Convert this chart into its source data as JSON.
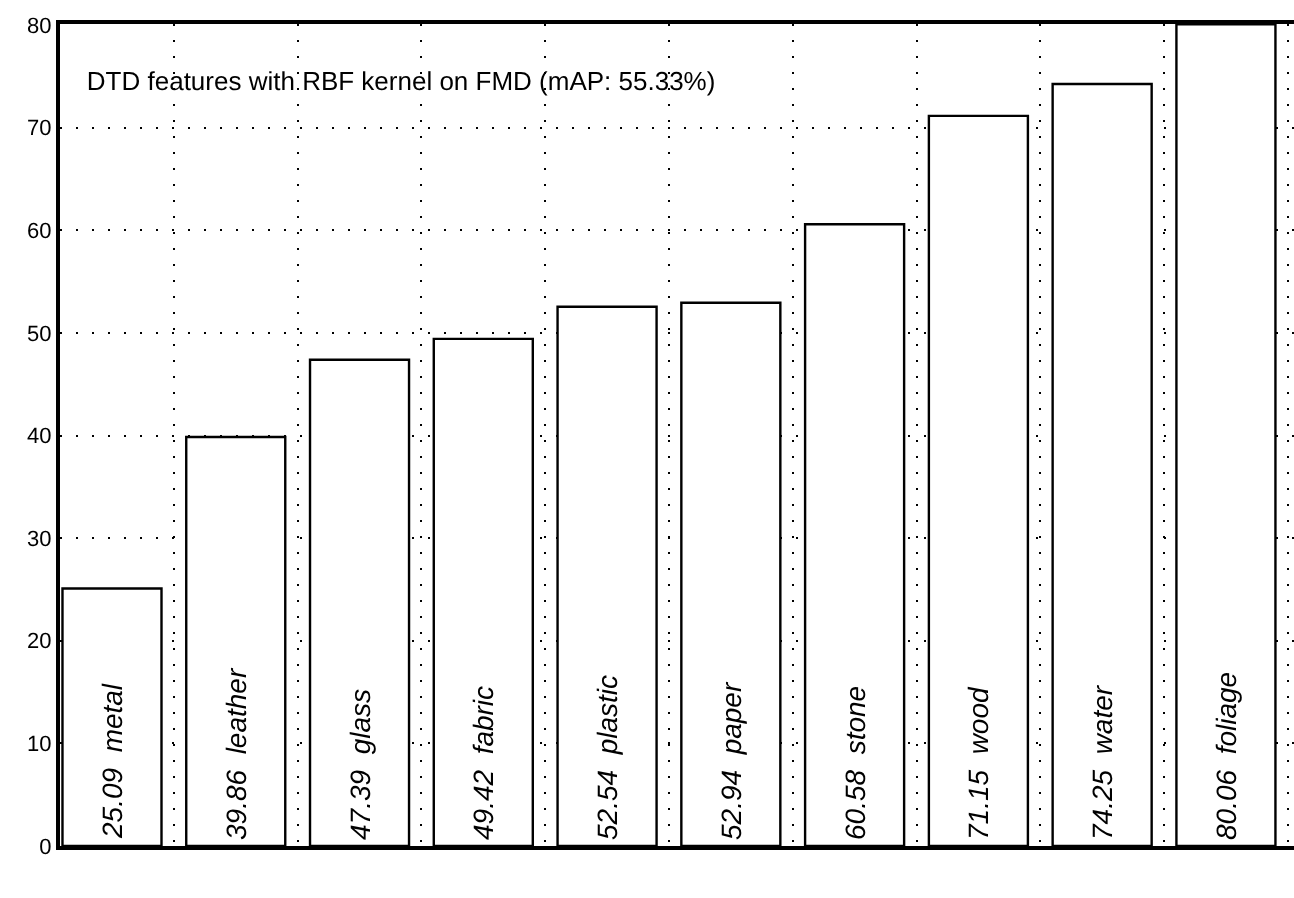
{
  "chart_data": {
    "type": "bar",
    "title": "DTD features with RBF kernel on FMD (mAP: 55.33%)",
    "categories": [
      "25.09  metal",
      "39.86  leather",
      "47.39  glass",
      "49.42  fabric",
      "52.54  plastic",
      "52.94  paper",
      "60.58  stone",
      "71.15  wood",
      "74.25  water",
      "80.06  foliage"
    ],
    "values": [
      25.09,
      39.86,
      47.39,
      49.42,
      52.54,
      52.94,
      60.58,
      71.15,
      74.25,
      80.06
    ],
    "color": "#ffffff",
    "ylim": [
      0,
      80.1
    ],
    "yticks": [
      {
        "value": 0,
        "label": "0"
      },
      10,
      20,
      30,
      40,
      50,
      60,
      70,
      {
        "value": 80,
        "label": "80"
      }
    ],
    "grid": true,
    "tick_labels": "y"
  }
}
